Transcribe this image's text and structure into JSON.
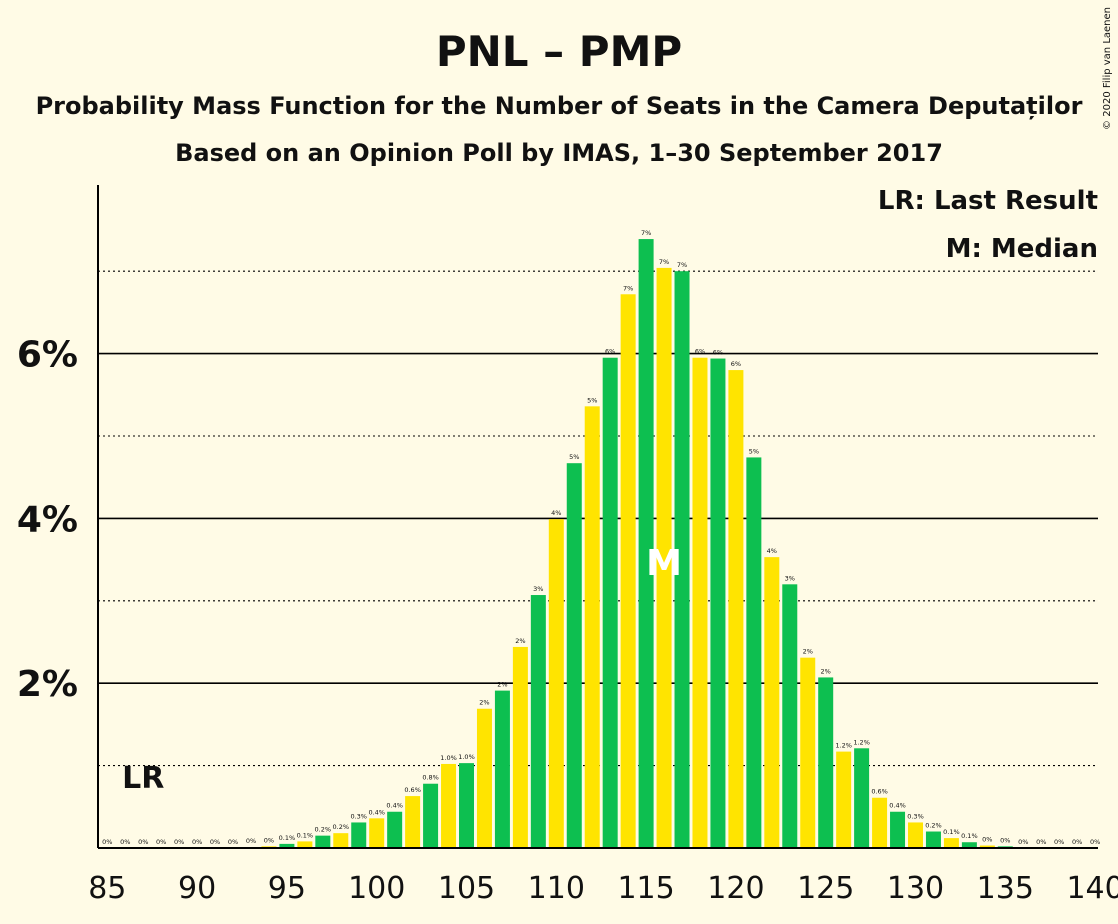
{
  "chart_data": {
    "type": "bar",
    "title": "PNL – PMP",
    "subtitle1": "Probability Mass Function for the Number of Seats in the Camera Deputaților",
    "subtitle2": "Based on an Opinion Poll by IMAS, 1–30 September 2017",
    "copyright": "© 2020 Filip van Laenen",
    "legend": [
      "LR: Last Result",
      "M: Median"
    ],
    "last_result_marker": "LR",
    "last_result_seat": 87,
    "median_marker": "M",
    "median_seat": 116,
    "x": [
      85,
      86,
      87,
      88,
      89,
      90,
      91,
      92,
      93,
      94,
      95,
      96,
      97,
      98,
      99,
      100,
      101,
      102,
      103,
      104,
      105,
      106,
      107,
      108,
      109,
      110,
      111,
      112,
      113,
      114,
      115,
      116,
      117,
      118,
      119,
      120,
      121,
      122,
      123,
      124,
      125,
      126,
      127,
      128,
      129,
      130,
      131,
      132,
      133,
      134,
      135,
      136,
      137,
      138,
      139,
      140
    ],
    "values": [
      0,
      0,
      0,
      0,
      0,
      0,
      0,
      0,
      0.01,
      0.02,
      0.05,
      0.08,
      0.15,
      0.18,
      0.31,
      0.36,
      0.44,
      0.63,
      0.78,
      1.02,
      1.03,
      1.69,
      1.91,
      2.44,
      3.07,
      3.99,
      4.67,
      5.36,
      5.95,
      6.72,
      7.39,
      7.04,
      7.0,
      5.95,
      5.94,
      5.8,
      4.74,
      3.53,
      3.2,
      2.31,
      2.07,
      1.17,
      1.21,
      0.61,
      0.44,
      0.31,
      0.2,
      0.12,
      0.07,
      0.03,
      0.02,
      0,
      0,
      0,
      0,
      0
    ],
    "labels": [
      "0%",
      "0%",
      "0%",
      "0%",
      "0%",
      "0%",
      "0%",
      "0%",
      "0%",
      "0%",
      "0.1%",
      "0.1%",
      "0.2%",
      "0.2%",
      "0.3%",
      "0.4%",
      "0.4%",
      "0.6%",
      "0.8%",
      "1.0%",
      "1.0%",
      "2%",
      "2%",
      "2%",
      "3%",
      "4%",
      "5%",
      "5%",
      "6%",
      "7%",
      "7%",
      "7%",
      "7%",
      "6%",
      "6%",
      "6%",
      "5%",
      "4%",
      "3%",
      "2%",
      "2%",
      "1.2%",
      "1.2%",
      "0.6%",
      "0.4%",
      "0.3%",
      "0.2%",
      "0.1%",
      "0.1%",
      "0%",
      "0%",
      "0%",
      "0%",
      "0%",
      "0%",
      "0%"
    ],
    "x_ticks": [
      "85",
      "90",
      "95",
      "100",
      "105",
      "110",
      "115",
      "120",
      "125",
      "130",
      "135",
      "140"
    ],
    "y_ticks": [
      "2%",
      "4%",
      "6%"
    ],
    "ylim": [
      0,
      8
    ],
    "colors": {
      "green": "#0dbf50",
      "yellow": "#ffe400",
      "background": "#fffbe6",
      "median_text": "#ffffff"
    }
  }
}
